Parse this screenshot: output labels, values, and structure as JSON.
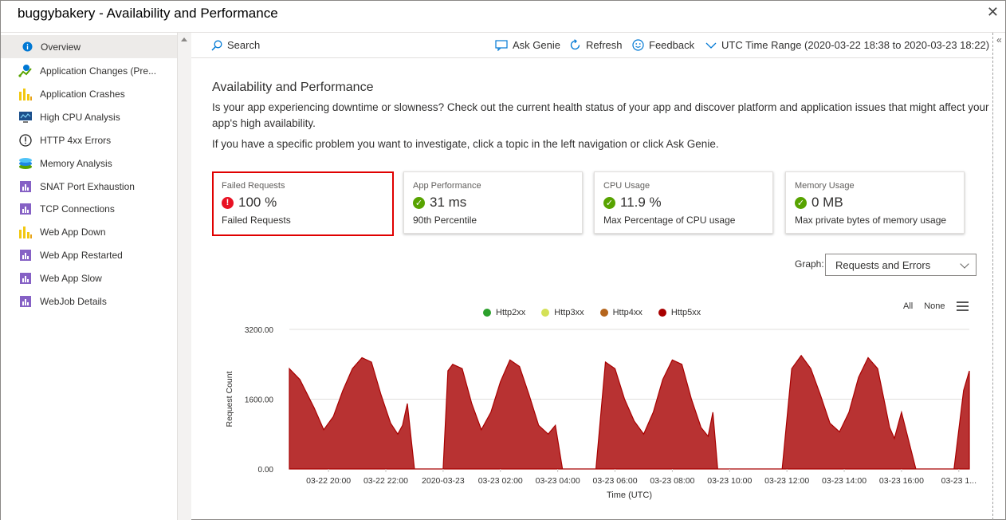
{
  "window": {
    "title": "buggybakery - Availability and Performance",
    "close_glyph": "✕"
  },
  "sidebar": {
    "items": [
      {
        "label": "Overview",
        "icon": "info-icon"
      },
      {
        "label": "Application Changes (Pre...",
        "icon": "changes-icon"
      },
      {
        "label": "Application Crashes",
        "icon": "bar-chart-icon"
      },
      {
        "label": "High CPU Analysis",
        "icon": "monitor-icon"
      },
      {
        "label": "HTTP 4xx Errors",
        "icon": "exclamation-circle-icon"
      },
      {
        "label": "Memory Analysis",
        "icon": "memory-icon"
      },
      {
        "label": "SNAT Port Exhaustion",
        "icon": "report-icon"
      },
      {
        "label": "TCP Connections",
        "icon": "report-icon"
      },
      {
        "label": "Web App Down",
        "icon": "bar-chart-icon"
      },
      {
        "label": "Web App Restarted",
        "icon": "report-icon"
      },
      {
        "label": "Web App Slow",
        "icon": "report-icon"
      },
      {
        "label": "WebJob Details",
        "icon": "report-icon"
      }
    ]
  },
  "toolbar": {
    "search": "Search",
    "ask_genie": "Ask Genie",
    "refresh": "Refresh",
    "feedback": "Feedback",
    "time_range": "UTC Time Range (2020-03-22 18:38 to 2020-03-23 18:22)"
  },
  "main": {
    "title": "Availability and Performance",
    "description": "Is your app experiencing downtime or slowness? Check out the current health status of your app and discover platform and application issues that might affect your app's high availability.",
    "instruction": "If you have a specific problem you want to investigate, click a topic in the left navigation or click Ask Genie."
  },
  "cards": [
    {
      "label": "Failed Requests",
      "value": "100 %",
      "sub": "Failed Requests",
      "status": "error"
    },
    {
      "label": "App Performance",
      "value": "31 ms",
      "sub": "90th Percentile",
      "status": "ok"
    },
    {
      "label": "CPU Usage",
      "value": "11.9 %",
      "sub": "Max Percentage of CPU usage",
      "status": "ok"
    },
    {
      "label": "Memory Usage",
      "value": "0 MB",
      "sub": "Max private bytes of memory usage",
      "status": "ok"
    }
  ],
  "graph": {
    "label": "Graph:",
    "selected": "Requests and Errors",
    "all": "All",
    "none": "None"
  },
  "colors": {
    "error": "#e81123",
    "ok": "#57a300",
    "http5xx": "#a80000",
    "area": "#b83232"
  },
  "chart_data": {
    "type": "area",
    "xlabel": "Time (UTC)",
    "ylabel": "Request Count",
    "ylim": [
      0,
      3200
    ],
    "yticks": [
      "3200.00",
      "1600.00",
      "0.00"
    ],
    "xtick_labels": [
      "03-22 20:00",
      "03-22 22:00",
      "2020-03-23",
      "03-23 02:00",
      "03-23 04:00",
      "03-23 06:00",
      "03-23 08:00",
      "03-23 10:00",
      "03-23 12:00",
      "03-23 14:00",
      "03-23 16:00",
      "03-23 1..."
    ],
    "grid": true,
    "legend_position": "top",
    "series": [
      {
        "name": "Http2xx",
        "color": "#2ca02c",
        "values": []
      },
      {
        "name": "Http3xx",
        "color": "#d4e157",
        "values": []
      },
      {
        "name": "Http4xx",
        "color": "#b5651d",
        "values": []
      },
      {
        "name": "Http5xx",
        "color": "#a80000",
        "x": [
          "18:38",
          "19:00",
          "19:30",
          "19:50",
          "20:10",
          "20:30",
          "20:50",
          "21:10",
          "21:30",
          "21:50",
          "22:10",
          "22:25",
          "22:35",
          "22:45",
          "23:00",
          "23:30",
          "23:50",
          "00:00",
          "00:10",
          "00:20",
          "00:40",
          "01:00",
          "01:20",
          "01:40",
          "02:00",
          "02:20",
          "02:40",
          "03:00",
          "03:20",
          "03:40",
          "03:55",
          "04:10",
          "04:30",
          "05:00",
          "05:20",
          "05:40",
          "06:00",
          "06:20",
          "06:40",
          "07:00",
          "07:20",
          "07:40",
          "08:00",
          "08:20",
          "08:40",
          "09:00",
          "09:15",
          "09:25",
          "09:35",
          "10:00",
          "10:30",
          "11:00",
          "11:30",
          "11:50",
          "12:10",
          "12:30",
          "12:50",
          "13:10",
          "13:30",
          "13:50",
          "14:10",
          "14:30",
          "14:50",
          "15:10",
          "15:25",
          "15:35",
          "15:45",
          "16:00",
          "16:30",
          "17:00",
          "17:30",
          "17:50",
          "18:10",
          "18:22"
        ],
        "values": [
          2300,
          2050,
          1400,
          900,
          1200,
          1800,
          2300,
          2550,
          2450,
          1700,
          1050,
          800,
          1000,
          1500,
          0,
          0,
          0,
          0,
          2250,
          2400,
          2300,
          1500,
          900,
          1300,
          2000,
          2500,
          2350,
          1700,
          1000,
          800,
          1000,
          0,
          0,
          0,
          0,
          2450,
          2300,
          1600,
          1100,
          800,
          1300,
          2050,
          2500,
          2400,
          1600,
          950,
          750,
          1300,
          0,
          0,
          0,
          0,
          0,
          0,
          2300,
          2600,
          2300,
          1700,
          1050,
          850,
          1300,
          2100,
          2550,
          2300,
          1500,
          950,
          700,
          1300,
          0,
          0,
          0,
          0,
          1800,
          2250
        ]
      }
    ]
  }
}
